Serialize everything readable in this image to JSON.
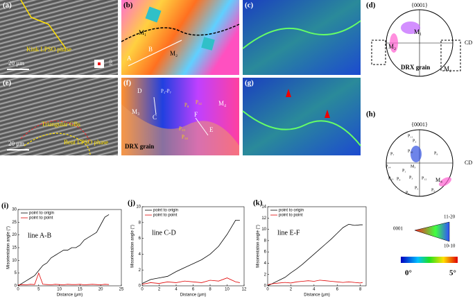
{
  "panels": {
    "a": {
      "label": "(a)",
      "annotation": "Kink LPSO phase",
      "scale": "20 μm",
      "axis": "ED"
    },
    "b": {
      "label": "(b)",
      "grains": [
        "M₁",
        "M₂"
      ],
      "points": [
        "A",
        "B"
      ]
    },
    "c": {
      "label": "(c)"
    },
    "d": {
      "label": "(d)",
      "pole": "{0001}",
      "axis": "CD",
      "grains": [
        "M₁",
        "M₂",
        "M₂"
      ],
      "note": "DRX grain"
    },
    "e": {
      "label": "(e)",
      "annotations": [
        "Triangular GBs",
        "Bent LPSO phase"
      ],
      "scale": "20 μm"
    },
    "f": {
      "label": "(f)",
      "grains": [
        "M₃",
        "M₄"
      ],
      "points": [
        "D",
        "C",
        "E",
        "F"
      ],
      "pts": [
        "P₁-P₇",
        "P₈",
        "P₁₂",
        "P₁₃",
        "P₁₄"
      ],
      "note": "DRX grain"
    },
    "g": {
      "label": "(g)"
    },
    "h": {
      "label": "(h)",
      "pole": "{0001}",
      "axis": "CD",
      "points": [
        "P₁₁",
        "P₂",
        "P₁₀",
        "P₈",
        "P₇",
        "P₁₄",
        "M₃",
        "P₁",
        "P₁₃",
        "P₉",
        "P₃",
        "P₁₂",
        "P₄",
        "P₅",
        "P₆",
        "M₄"
      ]
    },
    "legend": {
      "corners": [
        "0001",
        "11-20",
        "10-10"
      ],
      "scale": [
        "0°",
        "5°"
      ]
    }
  },
  "chart_data": [
    {
      "type": "line",
      "label": "(i)",
      "annotation": "line A-B",
      "x_label": "Distance (μm)",
      "y_label": "Misorientation angle (°)",
      "xlim": [
        0,
        25
      ],
      "xticks": [
        0,
        5,
        10,
        15,
        20,
        25
      ],
      "ylim": [
        0,
        30
      ],
      "yticks": [
        0,
        5,
        10,
        15,
        20,
        25,
        30
      ],
      "x": [
        0,
        1,
        2,
        3,
        4,
        5,
        6,
        7,
        8,
        9,
        10,
        11,
        12,
        13,
        14,
        15,
        16,
        17,
        18,
        19,
        20,
        21,
        22
      ],
      "series": [
        {
          "name": "point to origin",
          "color": "#000000",
          "values": [
            0,
            1,
            2,
            3,
            4,
            6,
            8,
            9,
            11,
            12,
            13,
            14,
            14,
            15,
            15,
            16,
            18,
            19,
            20,
            21,
            24,
            27,
            28
          ]
        },
        {
          "name": "point to point",
          "color": "#e00000",
          "values": [
            0.3,
            0.5,
            0.4,
            0.6,
            0.5,
            5,
            0.6,
            0.5,
            0.4,
            0.6,
            0.5,
            0.4,
            0.6,
            0.5,
            0.5,
            0.6,
            0.4,
            0.5,
            0.6,
            0.5,
            0.4,
            0.6,
            0.5
          ]
        }
      ]
    },
    {
      "type": "line",
      "label": "(j)",
      "annotation": "line C-D",
      "x_label": "Distance (μm)",
      "y_label": "Misorientation angle (°)",
      "xlim": [
        0,
        12
      ],
      "xticks": [
        0,
        2,
        4,
        6,
        8,
        10,
        12
      ],
      "ylim": [
        0,
        10
      ],
      "yticks": [
        0,
        2,
        4,
        6,
        8,
        10
      ],
      "x": [
        0,
        1,
        2,
        3,
        4,
        5,
        6,
        7,
        8,
        9,
        10,
        11,
        11.5
      ],
      "series": [
        {
          "name": "point to origin",
          "color": "#000000",
          "values": [
            0.3,
            0.8,
            1,
            1.2,
            1.8,
            2.3,
            2.8,
            3.3,
            4,
            5,
            6.5,
            8.3,
            8.3
          ]
        },
        {
          "name": "point to point",
          "color": "#e00000",
          "values": [
            0.2,
            0.4,
            0.3,
            0.5,
            0.4,
            0.6,
            0.5,
            0.4,
            0.7,
            0.6,
            1,
            0.5,
            0.4
          ]
        }
      ]
    },
    {
      "type": "line",
      "label": "(k)",
      "annotation": "line E-F",
      "x_label": "Distance (μm)",
      "y_label": "Misorientation angle (°)",
      "xlim": [
        0,
        8.5
      ],
      "xticks": [
        0,
        2,
        4,
        6,
        8
      ],
      "ylim": [
        0,
        14
      ],
      "yticks": [
        0,
        2,
        4,
        6,
        8,
        10,
        12,
        14
      ],
      "x": [
        0,
        0.5,
        1,
        1.5,
        2,
        2.5,
        3,
        3.5,
        4,
        4.5,
        5,
        5.5,
        6,
        6.5,
        7,
        7.5,
        8,
        8.2
      ],
      "series": [
        {
          "name": "point to origin",
          "color": "#000000",
          "values": [
            0,
            0.5,
            1,
            1.5,
            2.3,
            3,
            3.8,
            4.7,
            5.6,
            6.5,
            7.4,
            8.3,
            9.3,
            10.3,
            10.9,
            10.7,
            10.8,
            10.8
          ]
        },
        {
          "name": "point to point",
          "color": "#e00000",
          "values": [
            0.2,
            0.4,
            0.5,
            0.6,
            0.5,
            0.7,
            0.8,
            0.9,
            0.8,
            1,
            0.9,
            0.8,
            0.7,
            0.6,
            0.7,
            0.6,
            0.5,
            0.6
          ]
        }
      ]
    }
  ]
}
